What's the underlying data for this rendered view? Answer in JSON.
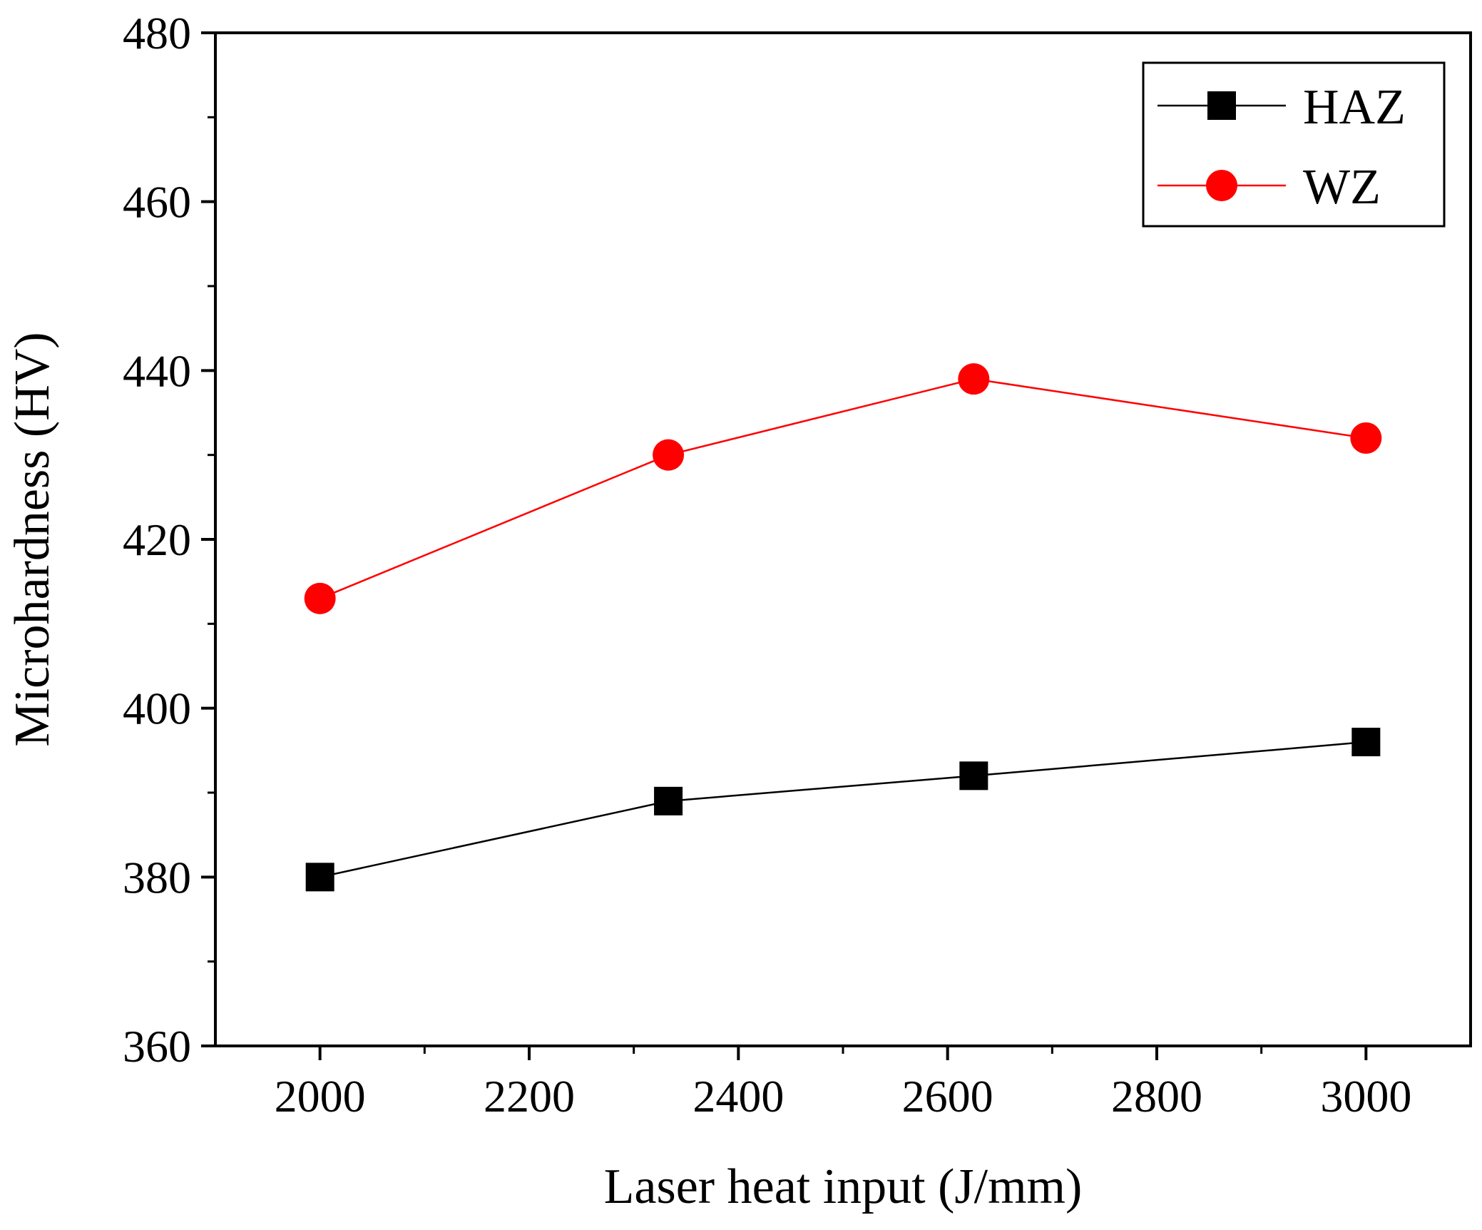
{
  "chart_data": {
    "type": "line",
    "title": "",
    "xlabel": "Laser heat input (J/mm)",
    "ylabel": "Microhardness (HV)",
    "xlim": [
      1900,
      3100
    ],
    "ylim": [
      360,
      480
    ],
    "xticks": [
      2000,
      2200,
      2400,
      2600,
      2800,
      3000
    ],
    "yticks": [
      360,
      380,
      400,
      420,
      440,
      460,
      480
    ],
    "x_minor_step": 100,
    "y_minor_step": 10,
    "grid": false,
    "legend_position": "top-right",
    "series": [
      {
        "name": "HAZ",
        "color": "#000000",
        "marker": "square",
        "x": [
          2000,
          2333,
          2625,
          3000
        ],
        "y": [
          380,
          389,
          392,
          396
        ]
      },
      {
        "name": "WZ",
        "color": "#ff0000",
        "marker": "circle",
        "x": [
          2000,
          2333,
          2625,
          3000
        ],
        "y": [
          413,
          430,
          439,
          432
        ]
      }
    ]
  }
}
